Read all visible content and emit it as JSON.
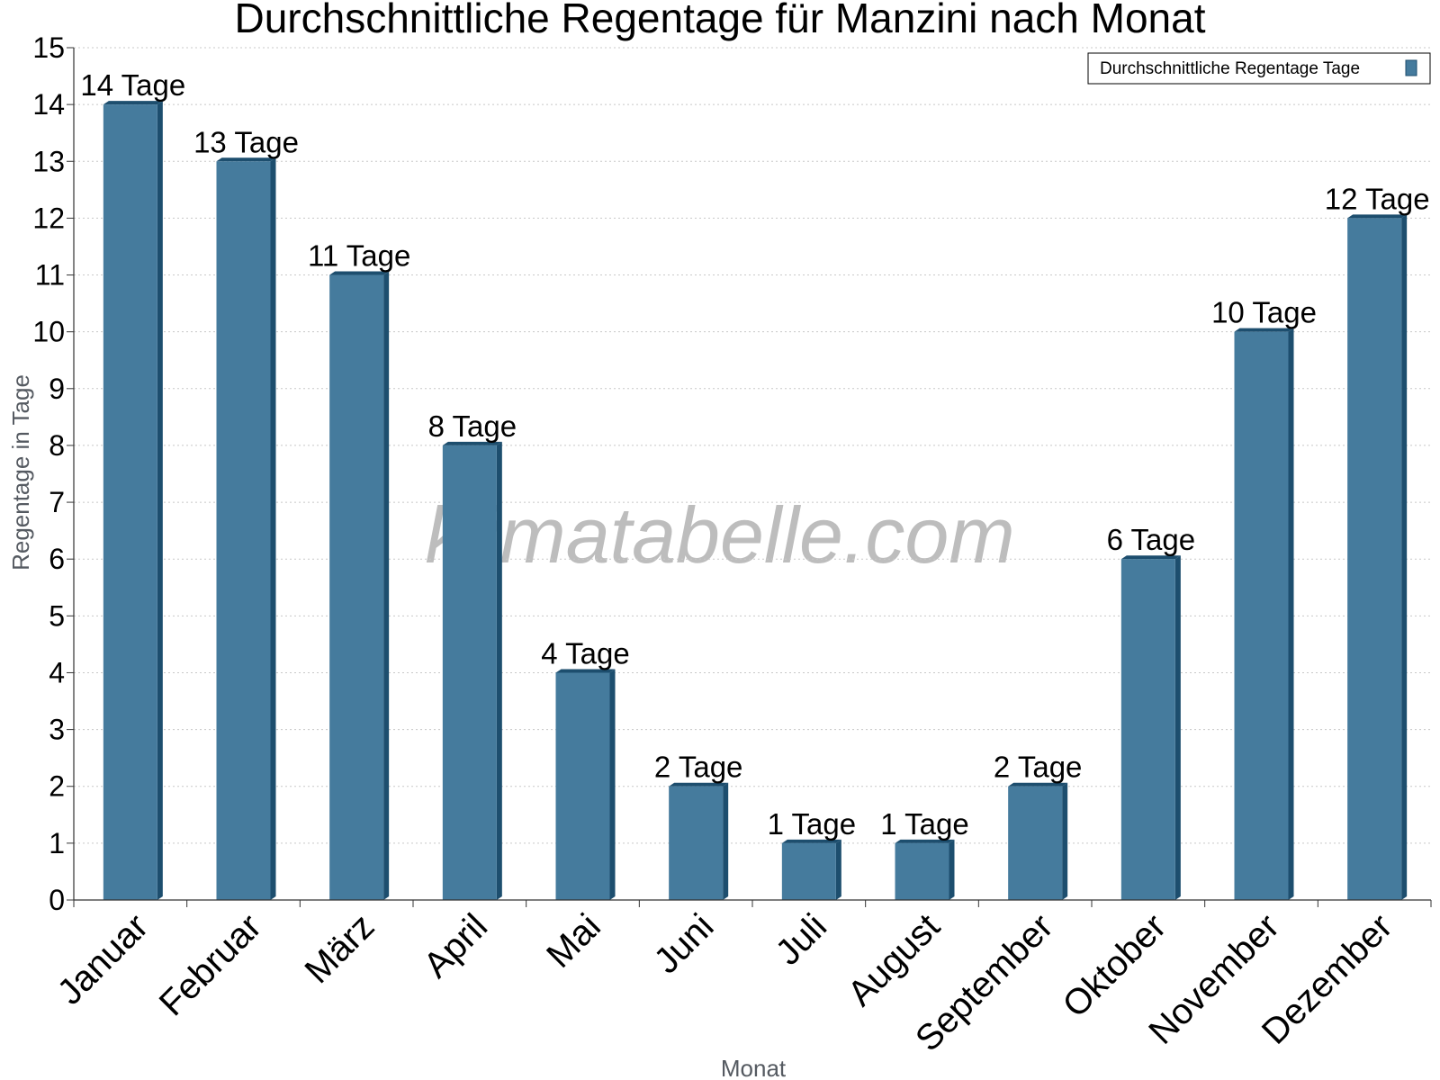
{
  "chart_data": {
    "type": "bar",
    "title": "Durchschnittliche Regentage für Manzini nach Monat",
    "xlabel": "Monat",
    "ylabel": "Regentage in Tage",
    "ylim": [
      0,
      15
    ],
    "yticks": [
      "0",
      "1",
      "2",
      "3",
      "4",
      "5",
      "6",
      "7",
      "8",
      "9",
      "10",
      "11",
      "12",
      "13",
      "14",
      "15"
    ],
    "grid": true,
    "legend_position": "top-right",
    "watermark": "klimatabelle.com",
    "categories": [
      "Januar",
      "Februar",
      "März",
      "April",
      "Mai",
      "Juni",
      "Juli",
      "August",
      "September",
      "Oktober",
      "November",
      "Dezember"
    ],
    "series": [
      {
        "name": "Durchschnittliche Regentage Tage",
        "values": [
          14,
          13,
          11,
          8,
          4,
          2,
          1,
          1,
          2,
          6,
          10,
          12
        ],
        "labels": [
          "14 Tage",
          "13 Tage",
          "11 Tage",
          "8 Tage",
          "4 Tage",
          "2 Tage",
          "1 Tage",
          "1 Tage",
          "2 Tage",
          "6 Tage",
          "10 Tage",
          "12 Tage"
        ],
        "color": "#457b9d",
        "side_color": "#1d4e6e"
      }
    ]
  }
}
